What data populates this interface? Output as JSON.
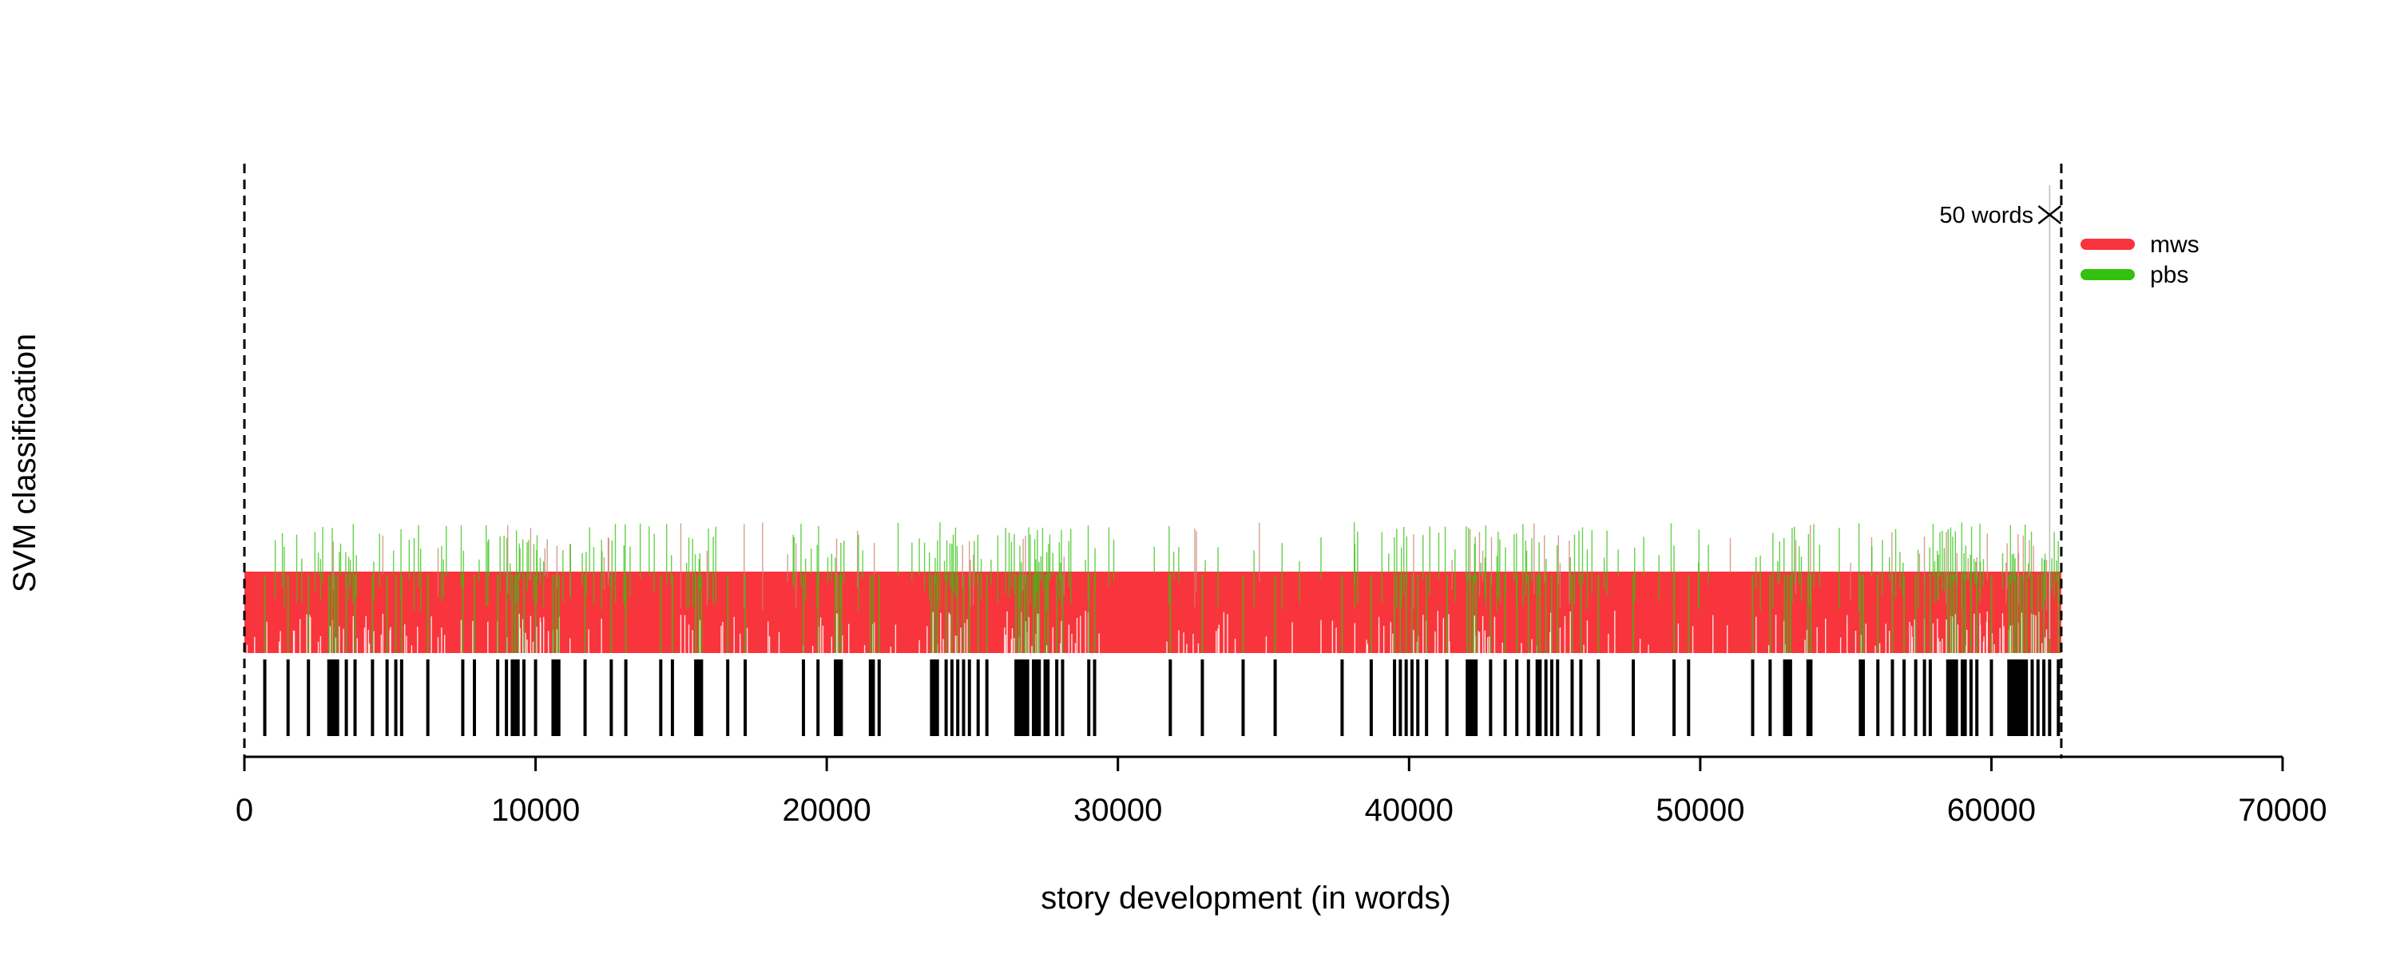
{
  "chart_data": {
    "type": "timeline",
    "xlabel": "story development (in words)",
    "ylabel": "SVM classification",
    "xlim": [
      0,
      70000
    ],
    "x_ticks": [
      "0",
      "10000",
      "20000",
      "30000",
      "40000",
      "50000",
      "60000",
      "70000"
    ],
    "text_start": 0,
    "text_end": 62400,
    "window_annotation": "50 words",
    "window_size": 50,
    "window_marker_x": 62000,
    "legend_position": "top-right",
    "series": [
      {
        "name": "mws",
        "color": "#f8353c"
      },
      {
        "name": "pbs",
        "color": "#33c10f"
      }
    ],
    "pbs_tick_positions": [
      700,
      1500,
      2200,
      2900,
      3000,
      3100,
      3200,
      3500,
      3800,
      4400,
      4900,
      5200,
      5400,
      6300,
      7500,
      7900,
      8700,
      9000,
      9200,
      9300,
      9400,
      9600,
      10000,
      10600,
      10700,
      10800,
      11700,
      12600,
      13100,
      14300,
      14700,
      15500,
      15600,
      15700,
      16600,
      17200,
      19200,
      19700,
      20300,
      20400,
      20500,
      21500,
      21600,
      21800,
      23600,
      23700,
      23800,
      24100,
      24300,
      24500,
      24700,
      24900,
      25200,
      25500,
      26500,
      26600,
      26700,
      26800,
      26900,
      27100,
      27200,
      27300,
      27500,
      27600,
      27900,
      28100,
      29000,
      29200,
      31800,
      32900,
      34300,
      35400,
      37700,
      38700,
      39500,
      39700,
      39900,
      40100,
      40300,
      40600,
      41300,
      42000,
      42100,
      42200,
      42300,
      42800,
      43300,
      43700,
      44100,
      44400,
      44500,
      44700,
      44900,
      45100,
      45600,
      45900,
      46500,
      47700,
      49100,
      49600,
      51800,
      52400,
      52900,
      53000,
      53100,
      53700,
      53800,
      55500,
      55600,
      56100,
      56600,
      57000,
      57400,
      57700,
      57900,
      58500,
      58600,
      58700,
      58800,
      59000,
      59100,
      59300,
      59500,
      60000,
      60600,
      60700,
      60800,
      60900,
      61000,
      61100,
      61200,
      61400,
      61600,
      61800,
      62000,
      62300
    ]
  }
}
